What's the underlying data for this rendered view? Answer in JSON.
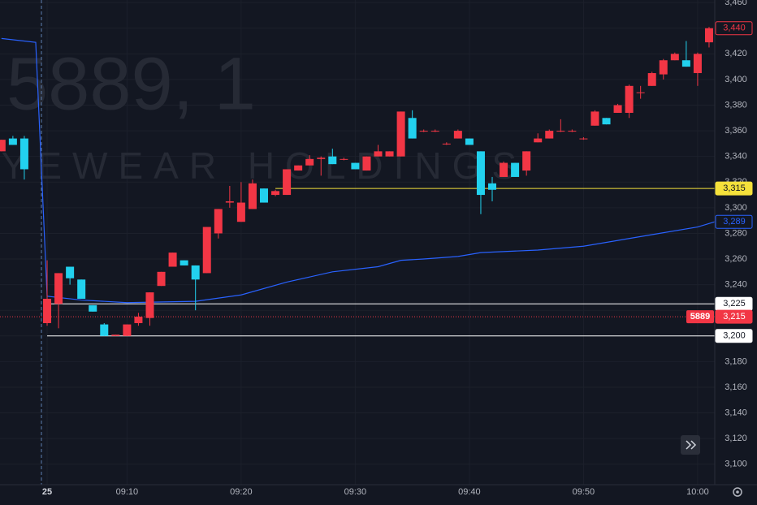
{
  "watermark": {
    "symbol": "5889, 1",
    "name": "EYEWEAR HOLDINGS"
  },
  "chart_data": {
    "type": "candlestick",
    "up_color": "#f23645",
    "down_color": "#22d1ee",
    "x": [
      -1,
      0,
      1,
      3,
      4,
      5,
      6,
      7,
      8,
      9,
      10,
      11,
      12,
      13,
      14,
      15,
      16,
      17,
      18,
      19,
      20,
      21,
      22,
      23,
      24,
      25,
      26,
      27,
      28,
      29,
      30,
      31,
      32,
      33,
      34,
      35,
      36,
      37,
      38,
      39,
      40,
      41,
      42,
      43,
      44,
      45,
      46,
      47,
      48,
      49,
      50,
      51,
      52,
      53,
      54,
      55,
      56,
      57,
      58,
      59,
      60,
      61
    ],
    "open": [
      3344,
      3354,
      3354,
      3210,
      3225,
      3254,
      3244,
      3224,
      3209,
      3200,
      3200,
      3210,
      3214,
      3239,
      3254,
      3259,
      3255,
      3249,
      3280,
      3304,
      3289,
      3299,
      3315,
      3310,
      3310,
      3329,
      3333,
      3338,
      3340,
      3338,
      3335,
      3329,
      3340,
      3340,
      3340,
      3370,
      3360,
      3360,
      3350,
      3354,
      3354,
      3344,
      3319,
      3324,
      3335,
      3329,
      3351,
      3354,
      3360,
      3360,
      3354,
      3364,
      3370,
      3374,
      3374,
      3390,
      3395,
      3404,
      3415,
      3415,
      3405,
      3429
    ],
    "high": [
      3353,
      3356,
      3356,
      3259,
      3249,
      3254,
      3244,
      3224,
      3210,
      3201,
      3209,
      3218,
      3234,
      3250,
      3265,
      3259,
      3255,
      3285,
      3299,
      3317,
      3320,
      3322,
      3315,
      3314,
      3330,
      3333,
      3341,
      3340,
      3346,
      3339,
      3335,
      3340,
      3349,
      3344,
      3375,
      3376,
      3361,
      3361,
      3351,
      3361,
      3354,
      3344,
      3324,
      3336,
      3335,
      3344,
      3358,
      3361,
      3369,
      3361,
      3355,
      3376,
      3370,
      3381,
      3396,
      3395,
      3406,
      3416,
      3421,
      3430,
      3421,
      3441
    ],
    "low": [
      3344,
      3349,
      3322,
      3208,
      3206,
      3240,
      3229,
      3219,
      3200,
      3200,
      3200,
      3208,
      3208,
      3239,
      3254,
      3255,
      3220,
      3249,
      3276,
      3300,
      3289,
      3299,
      3304,
      3309,
      3310,
      3329,
      3333,
      3325,
      3334,
      3337,
      3330,
      3329,
      3340,
      3340,
      3340,
      3354,
      3359,
      3359,
      3349,
      3354,
      3349,
      3295,
      3305,
      3324,
      3324,
      3325,
      3351,
      3354,
      3359,
      3359,
      3353,
      3364,
      3365,
      3374,
      3370,
      3385,
      3395,
      3400,
      3415,
      3410,
      3395,
      3425
    ],
    "close": [
      3353,
      3349,
      3330,
      3229,
      3249,
      3245,
      3229,
      3219,
      3200,
      3201,
      3209,
      3215,
      3234,
      3250,
      3265,
      3255,
      3244,
      3285,
      3299,
      3305,
      3304,
      3319,
      3304,
      3313,
      3330,
      3333,
      3338,
      3339,
      3334,
      3338,
      3330,
      3340,
      3344,
      3344,
      3375,
      3354,
      3360,
      3360,
      3350,
      3360,
      3349,
      3310,
      3314,
      3335,
      3324,
      3344,
      3354,
      3360,
      3360,
      3360,
      3354,
      3375,
      3365,
      3380,
      3395,
      3390,
      3405,
      3415,
      3420,
      3410,
      3420,
      3440
    ],
    "line": {
      "color": "#2962ff",
      "x": [
        -1,
        2,
        3,
        6,
        10,
        16,
        20,
        24,
        28,
        32,
        34,
        36,
        39,
        41,
        46,
        50,
        54,
        56,
        60,
        61.5
      ],
      "values": [
        3432,
        3429,
        3231,
        3228,
        3226,
        3227,
        3232,
        3242,
        3250,
        3254,
        3259,
        3260,
        3262,
        3265,
        3267,
        3270,
        3276,
        3279,
        3285,
        3289
      ],
      "label": {
        "value": 3289,
        "label": "3,289"
      }
    },
    "price_lines": [
      {
        "value": 3315,
        "label": "3,315",
        "color": "#f5e13b",
        "start": 23
      },
      {
        "value": 3225,
        "label": "3,225",
        "color": "#ffffff",
        "start": 3
      },
      {
        "value": 3200,
        "label": "3,200",
        "color": "#ffffff",
        "start": 3
      }
    ],
    "last_price": {
      "value": 3440,
      "label": "3,440",
      "color": "#f23645"
    },
    "prev_close": {
      "value": 3215,
      "label": "3,215",
      "tag": "5889",
      "color": "#f23645"
    },
    "xlim": [
      -1.13,
      61.5
    ],
    "xticks": [
      {
        "value": 3,
        "label": "25"
      },
      {
        "value": 10,
        "label": "09:10"
      },
      {
        "value": 20,
        "label": "09:20"
      },
      {
        "value": 30,
        "label": "09:30"
      },
      {
        "value": 40,
        "label": "09:40"
      },
      {
        "value": 50,
        "label": "09:50"
      },
      {
        "value": 60,
        "label": "10:00"
      }
    ],
    "ylim": [
      3084,
      3462
    ],
    "yticks": [
      {
        "value": 3100,
        "label": "3,100"
      },
      {
        "value": 3120,
        "label": "3,120"
      },
      {
        "value": 3140,
        "label": "3,140"
      },
      {
        "value": 3160,
        "label": "3,160"
      },
      {
        "value": 3180,
        "label": "3,180"
      },
      {
        "value": 3200,
        "label": "3,200"
      },
      {
        "value": 3220,
        "label": "3,220"
      },
      {
        "value": 3240,
        "label": "3,240"
      },
      {
        "value": 3260,
        "label": "3,260"
      },
      {
        "value": 3280,
        "label": "3,280"
      },
      {
        "value": 3300,
        "label": "3,300"
      },
      {
        "value": 3320,
        "label": "3,320"
      },
      {
        "value": 3340,
        "label": "3,340"
      },
      {
        "value": 3360,
        "label": "3,360"
      },
      {
        "value": 3380,
        "label": "3,380"
      },
      {
        "value": 3400,
        "label": "3,400"
      },
      {
        "value": 3420,
        "label": "3,420"
      },
      {
        "value": 3440,
        "label": "3,440"
      },
      {
        "value": 3460,
        "label": "3,460"
      }
    ],
    "grid": true
  }
}
